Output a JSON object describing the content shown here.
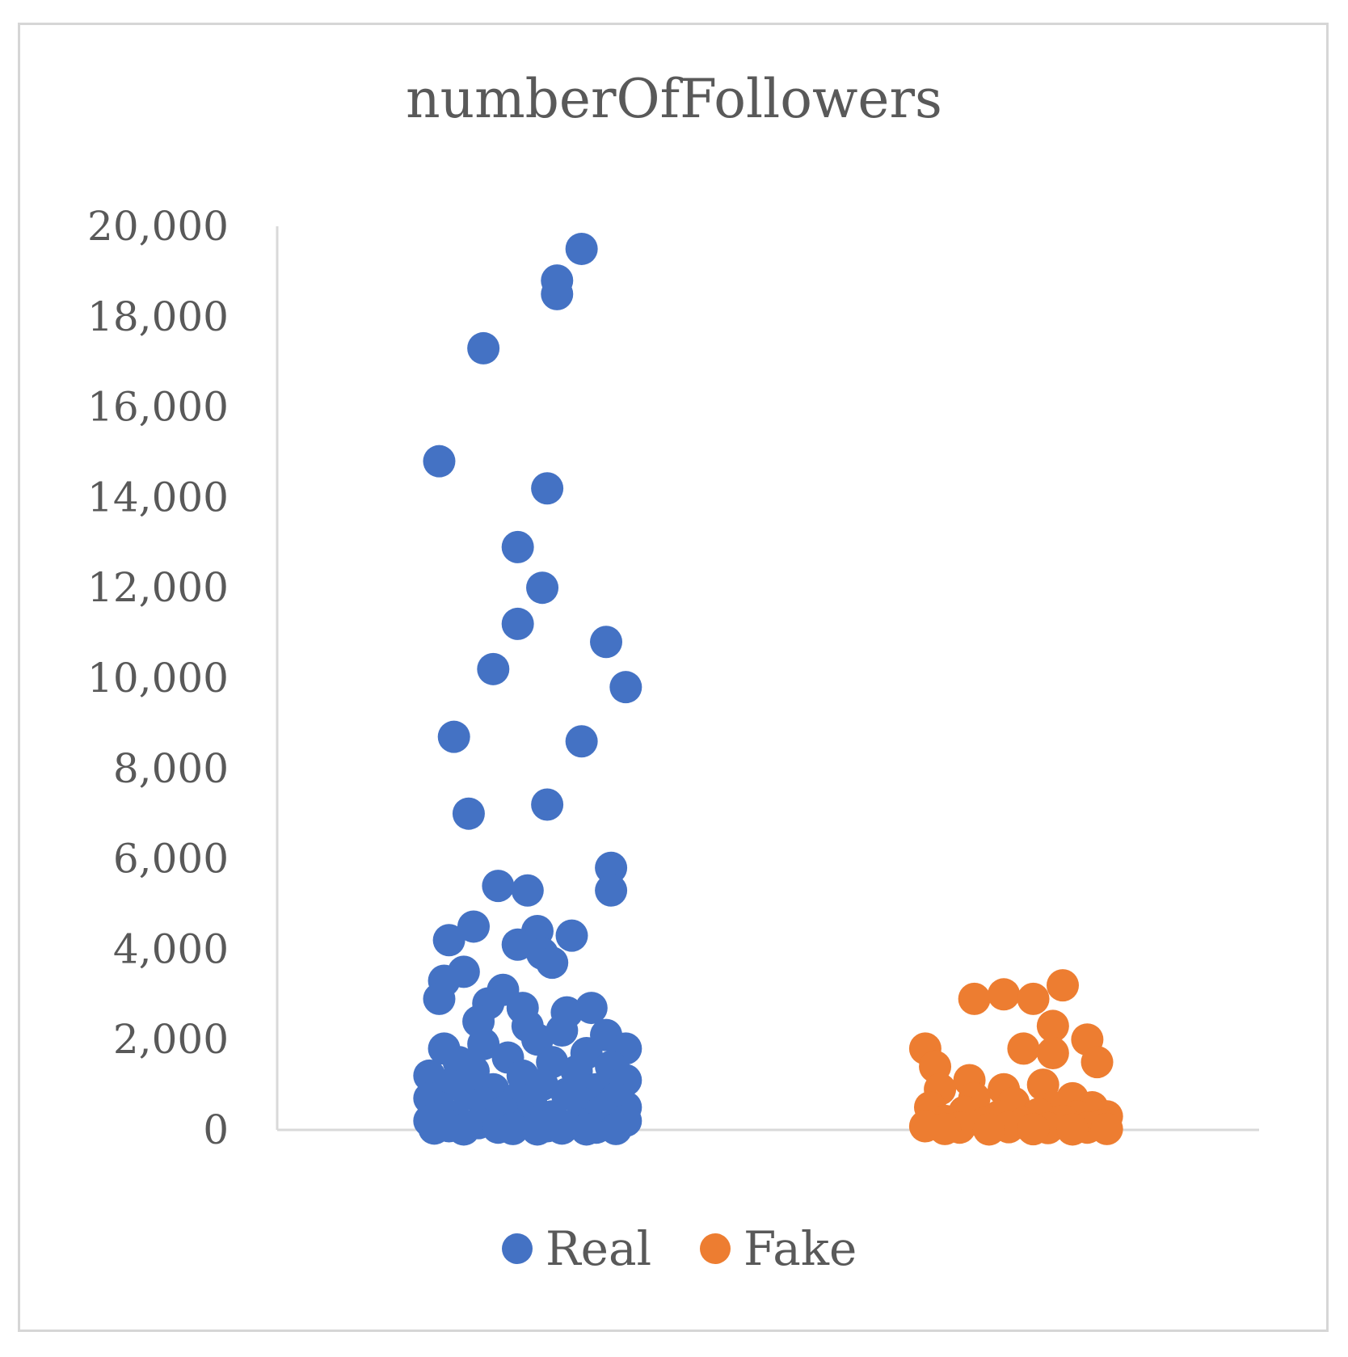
{
  "chart_data": {
    "type": "scatter",
    "title": "numberOfFollowers",
    "xlabel": "",
    "ylabel": "",
    "ylim": [
      0,
      20000
    ],
    "yticks": [
      "0",
      "2,000",
      "4,000",
      "6,000",
      "8,000",
      "10,000",
      "12,000",
      "14,000",
      "16,000",
      "18,000",
      "20,000"
    ],
    "grid": false,
    "legend_position": "bottom",
    "categories": [
      "Real",
      "Fake"
    ],
    "series": [
      {
        "name": "Real",
        "color": "#4472C4",
        "jitter_center": 1,
        "points": [
          [
            0.83,
            14800
          ],
          [
            0.92,
            17300
          ],
          [
            1.07,
            18500
          ],
          [
            1.07,
            18800
          ],
          [
            1.12,
            19500
          ],
          [
            1.05,
            14200
          ],
          [
            0.99,
            12900
          ],
          [
            1.04,
            12000
          ],
          [
            0.99,
            11200
          ],
          [
            1.17,
            10800
          ],
          [
            0.94,
            10200
          ],
          [
            1.21,
            9800
          ],
          [
            0.86,
            8700
          ],
          [
            1.12,
            8600
          ],
          [
            1.05,
            7200
          ],
          [
            0.89,
            7000
          ],
          [
            1.18,
            5800
          ],
          [
            0.95,
            5400
          ],
          [
            1.01,
            5300
          ],
          [
            1.18,
            5300
          ],
          [
            0.9,
            4500
          ],
          [
            0.85,
            4200
          ],
          [
            1.03,
            4400
          ],
          [
            1.1,
            4300
          ],
          [
            0.99,
            4100
          ],
          [
            1.04,
            3900
          ],
          [
            1.06,
            3700
          ],
          [
            0.88,
            3500
          ],
          [
            0.84,
            3300
          ],
          [
            0.96,
            3100
          ],
          [
            0.83,
            2900
          ],
          [
            0.93,
            2800
          ],
          [
            1.0,
            2700
          ],
          [
            1.09,
            2600
          ],
          [
            1.14,
            2700
          ],
          [
            0.91,
            2400
          ],
          [
            1.01,
            2300
          ],
          [
            1.08,
            2200
          ],
          [
            1.17,
            2100
          ],
          [
            0.84,
            1800
          ],
          [
            0.92,
            1900
          ],
          [
            1.03,
            2000
          ],
          [
            1.21,
            1800
          ],
          [
            1.13,
            1700
          ],
          [
            0.87,
            1500
          ],
          [
            0.97,
            1600
          ],
          [
            1.06,
            1500
          ],
          [
            1.18,
            1400
          ],
          [
            0.81,
            1200
          ],
          [
            0.9,
            1300
          ],
          [
            1.0,
            1200
          ],
          [
            1.11,
            1300
          ],
          [
            1.21,
            1100
          ],
          [
            0.85,
            1000
          ],
          [
            0.94,
            900
          ],
          [
            1.04,
            1000
          ],
          [
            1.15,
            900
          ],
          [
            0.81,
            700
          ],
          [
            0.89,
            800
          ],
          [
            0.99,
            700
          ],
          [
            1.09,
            800
          ],
          [
            1.19,
            700
          ],
          [
            0.83,
            500
          ],
          [
            0.92,
            600
          ],
          [
            1.02,
            500
          ],
          [
            1.12,
            600
          ],
          [
            1.21,
            500
          ],
          [
            0.86,
            300
          ],
          [
            0.96,
            400
          ],
          [
            1.06,
            300
          ],
          [
            1.16,
            400
          ],
          [
            0.81,
            200
          ],
          [
            0.91,
            150
          ],
          [
            1.01,
            200
          ],
          [
            1.11,
            150
          ],
          [
            1.21,
            200
          ],
          [
            0.85,
            80
          ],
          [
            0.95,
            50
          ],
          [
            1.05,
            80
          ],
          [
            1.15,
            50
          ],
          [
            0.82,
            30
          ],
          [
            0.98,
            20
          ],
          [
            1.08,
            30
          ],
          [
            1.19,
            20
          ],
          [
            0.88,
            10
          ],
          [
            1.03,
            10
          ],
          [
            1.13,
            10
          ]
        ]
      },
      {
        "name": "Fake",
        "color": "#ED7D31",
        "jitter_center": 2,
        "points": [
          [
            1.92,
            2900
          ],
          [
            1.98,
            3000
          ],
          [
            2.04,
            2900
          ],
          [
            2.1,
            3200
          ],
          [
            2.08,
            2300
          ],
          [
            2.15,
            2000
          ],
          [
            2.02,
            1800
          ],
          [
            2.08,
            1700
          ],
          [
            2.17,
            1500
          ],
          [
            1.82,
            1800
          ],
          [
            1.84,
            1400
          ],
          [
            1.91,
            1100
          ],
          [
            1.98,
            900
          ],
          [
            2.06,
            1000
          ],
          [
            2.12,
            700
          ],
          [
            2.16,
            500
          ],
          [
            1.85,
            900
          ],
          [
            1.92,
            700
          ],
          [
            2.0,
            600
          ],
          [
            2.08,
            500
          ],
          [
            1.83,
            500
          ],
          [
            1.9,
            400
          ],
          [
            1.97,
            300
          ],
          [
            2.05,
            350
          ],
          [
            2.13,
            300
          ],
          [
            2.19,
            300
          ],
          [
            1.86,
            200
          ],
          [
            1.94,
            150
          ],
          [
            2.02,
            150
          ],
          [
            2.1,
            200
          ],
          [
            2.18,
            100
          ],
          [
            1.82,
            80
          ],
          [
            1.89,
            50
          ],
          [
            1.99,
            60
          ],
          [
            2.07,
            40
          ],
          [
            2.15,
            50
          ],
          [
            1.86,
            20
          ],
          [
            1.95,
            10
          ],
          [
            2.04,
            15
          ],
          [
            2.12,
            10
          ],
          [
            2.19,
            20
          ]
        ]
      }
    ]
  }
}
